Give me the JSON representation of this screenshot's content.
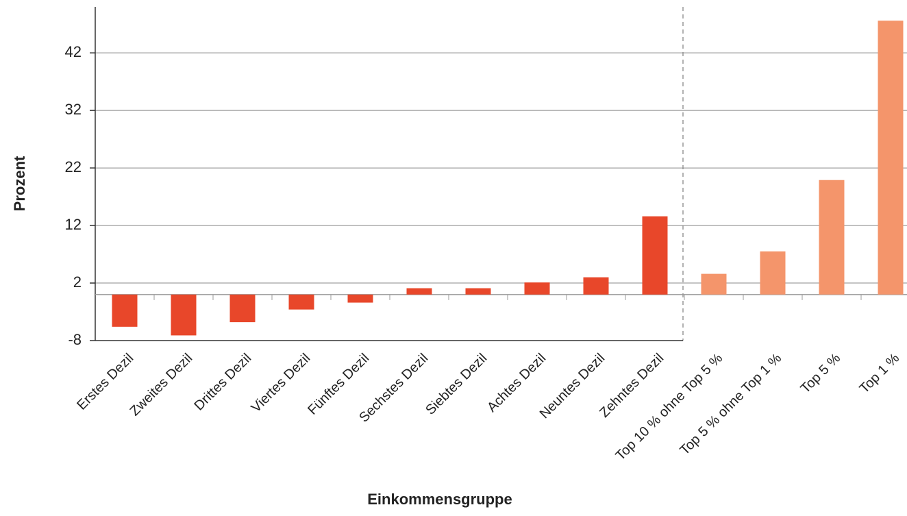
{
  "chart_data": {
    "type": "bar",
    "x_label": "Einkommensgruppe",
    "y_label": "Prozent",
    "categories": [
      "Erstes Dezil",
      "Zweites Dezil",
      "Drittes Dezil",
      "Viertes Dezil",
      "Fünftes Dezil",
      "Sechstes Dezil",
      "Siebtes Dezil",
      "Achtes Dezil",
      "Neuntes Dezil",
      "Zehntes Dezil",
      "Top 10 % ohne Top 5 %",
      "Top 5 % ohne Top 1 %",
      "Top 5 %",
      "Top 1 %"
    ],
    "values": [
      -5.6,
      -7.1,
      -4.8,
      -2.6,
      -1.4,
      1.1,
      1.1,
      2.1,
      3.0,
      13.6,
      3.6,
      7.5,
      19.9,
      47.6
    ],
    "colors": [
      "#e8472a",
      "#e8472a",
      "#e8472a",
      "#e8472a",
      "#e8472a",
      "#e8472a",
      "#e8472a",
      "#e8472a",
      "#e8472a",
      "#e8472a",
      "#f4956b",
      "#f4956b",
      "#f4956b",
      "#f4956b"
    ],
    "ylim": [
      -8,
      50
    ],
    "yticks": [
      -8,
      2,
      12,
      22,
      32,
      42
    ],
    "grid": true
  }
}
